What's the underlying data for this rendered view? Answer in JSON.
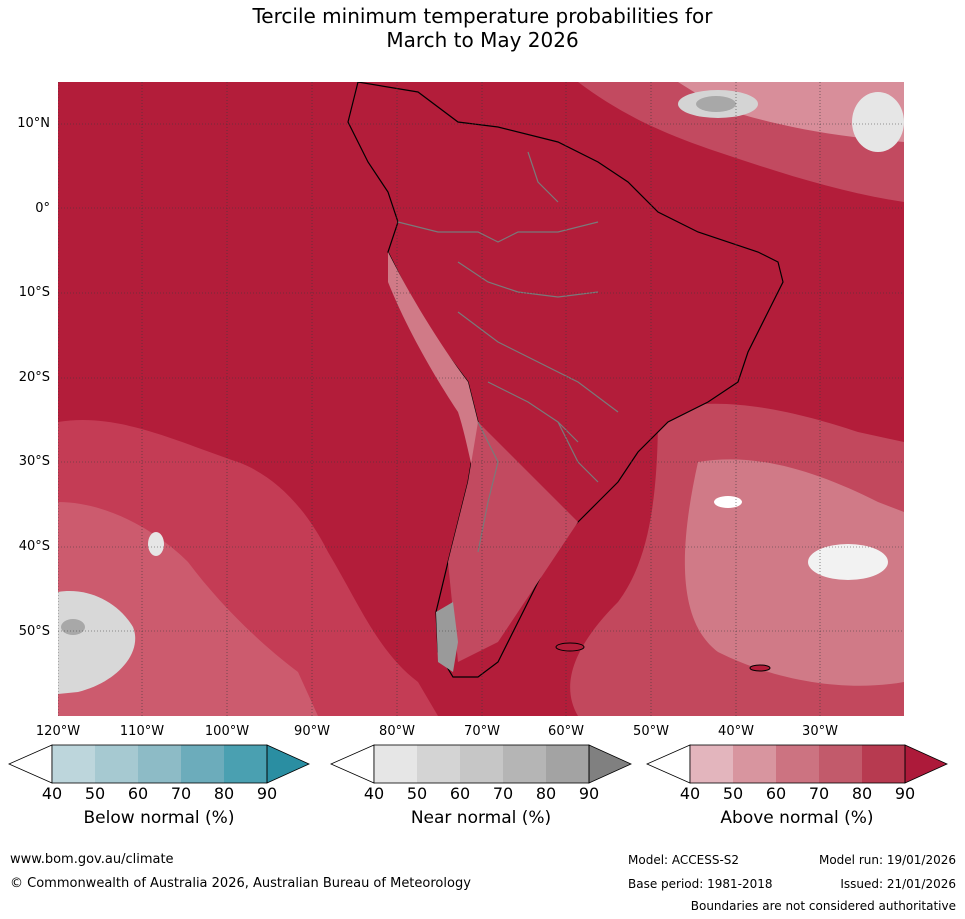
{
  "title_line1": "Tercile minimum temperature probabilities for",
  "title_line2": "March to May 2026",
  "lat_labels": [
    "10°N",
    "0°",
    "10°S",
    "20°S",
    "30°S",
    "40°S",
    "50°S"
  ],
  "lon_labels": [
    "120°W",
    "110°W",
    "100°W",
    "90°W",
    "80°W",
    "70°W",
    "60°W",
    "50°W",
    "40°W",
    "30°W"
  ],
  "colorbars": [
    {
      "label": "Below normal (%)",
      "ticks": [
        "40",
        "50",
        "60",
        "70",
        "80",
        "90"
      ],
      "colors": [
        "#ffffff",
        "#bdd6dc",
        "#a6c9d1",
        "#8dbbc6",
        "#6cacbb",
        "#4aa0b1",
        "#2a8ea2"
      ]
    },
    {
      "label": "Near normal (%)",
      "ticks": [
        "40",
        "50",
        "60",
        "70",
        "80",
        "90"
      ],
      "colors": [
        "#ffffff",
        "#e6e6e6",
        "#d4d4d4",
        "#c6c6c6",
        "#b5b5b5",
        "#a3a3a3",
        "#808080"
      ]
    },
    {
      "label": "Above normal (%)",
      "ticks": [
        "40",
        "50",
        "60",
        "70",
        "80",
        "90"
      ],
      "colors": [
        "#ffffff",
        "#e3b5bd",
        "#d8959f",
        "#cc7381",
        "#c25a6b",
        "#b73a50",
        "#ad1a3a"
      ]
    }
  ],
  "footer": {
    "website": "www.bom.gov.au/climate",
    "copyright": "© Commonwealth of Australia 2026, Australian Bureau of Meteorology",
    "model": "Model: ACCESS-S2",
    "model_run": "Model run: 19/01/2026",
    "base_period": "Base period: 1981-2018",
    "issued": "Issued: 21/01/2026",
    "disclaimer": "Boundaries are not considered authoritative"
  }
}
